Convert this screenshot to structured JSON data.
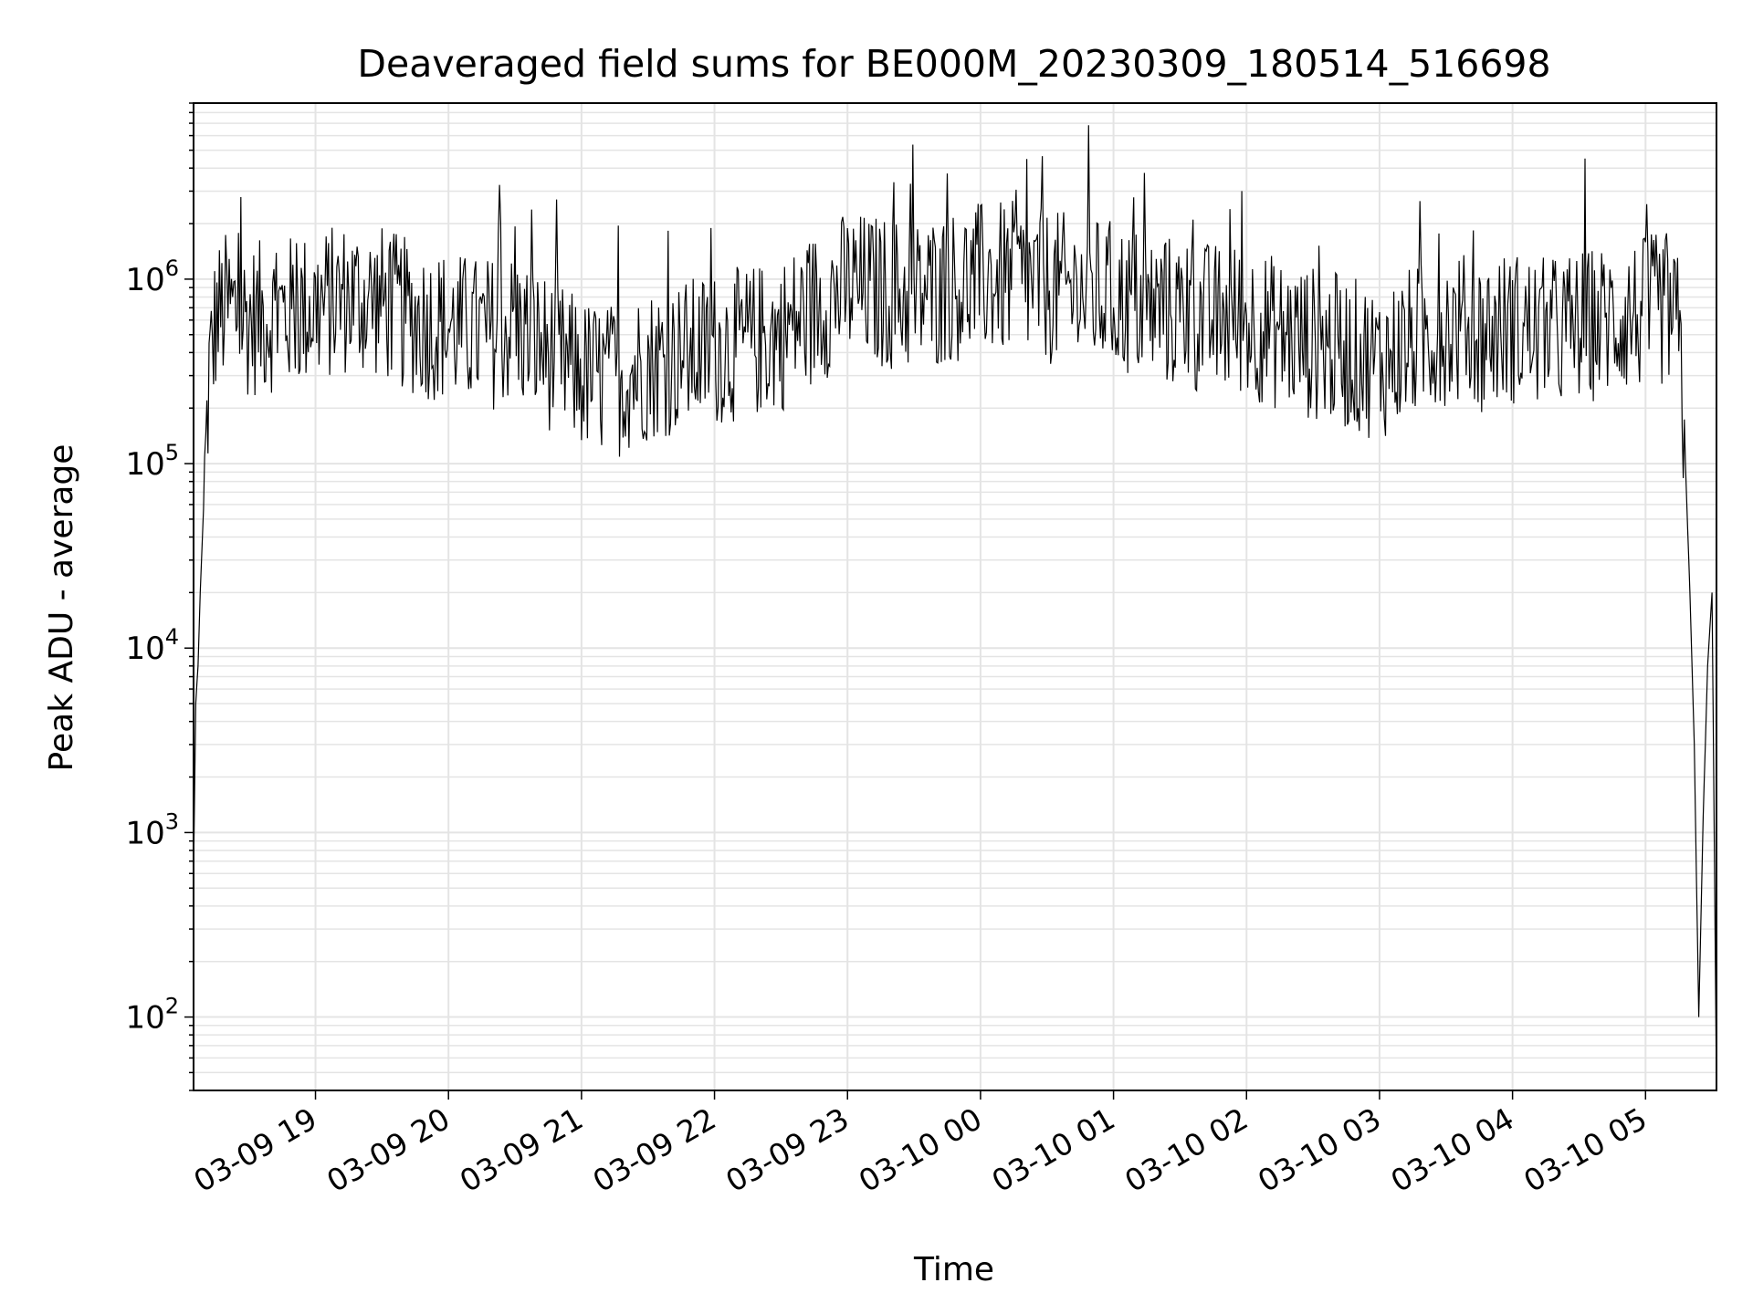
{
  "chart_data": {
    "type": "line",
    "title": "Deaveraged field sums for BE000M_20230309_180514_516698",
    "xlabel": "Time",
    "ylabel": "Peak ADU - average",
    "yscale": "log",
    "ylim": [
      40,
      9000000
    ],
    "xlim": [
      "03-09 18:05",
      "03-10 05:32"
    ],
    "grid": true,
    "x_ticks": [
      "03-09 19",
      "03-09 20",
      "03-09 21",
      "03-09 22",
      "03-09 23",
      "03-10 00",
      "03-10 01",
      "03-10 02",
      "03-10 03",
      "03-10 04",
      "03-10 05"
    ],
    "y_ticks": [
      {
        "value": 100,
        "base": "10",
        "exp": "2"
      },
      {
        "value": 1000,
        "base": "10",
        "exp": "3"
      },
      {
        "value": 10000,
        "base": "10",
        "exp": "4"
      },
      {
        "value": 100000,
        "base": "10",
        "exp": "5"
      },
      {
        "value": 1000000,
        "base": "10",
        "exp": "6"
      }
    ],
    "series": [
      {
        "color": "#000000",
        "x": [
          "03-09 18:05",
          "03-09 18:06",
          "03-09 18:07",
          "03-09 18:08",
          "03-09 18:10",
          "03-09 18:12",
          "03-09 18:15",
          "03-09 18:20",
          "03-09 18:30",
          "03-09 18:45",
          "03-09 19:00",
          "03-09 19:15",
          "03-09 19:30",
          "03-09 19:45",
          "03-09 20:00",
          "03-09 20:15",
          "03-09 20:30",
          "03-09 20:45",
          "03-09 21:00",
          "03-09 21:15",
          "03-09 21:30",
          "03-09 21:45",
          "03-09 22:00",
          "03-09 22:15",
          "03-09 22:30",
          "03-09 22:45",
          "03-09 23:00",
          "03-09 23:15",
          "03-09 23:30",
          "03-09 23:45",
          "03-10 00:00",
          "03-10 00:15",
          "03-10 00:30",
          "03-10 00:45",
          "03-10 01:00",
          "03-10 01:15",
          "03-10 01:30",
          "03-10 01:45",
          "03-10 02:00",
          "03-10 02:15",
          "03-10 02:30",
          "03-10 02:45",
          "03-10 03:00",
          "03-10 03:15",
          "03-10 03:30",
          "03-10 03:45",
          "03-10 04:00",
          "03-10 04:15",
          "03-10 04:30",
          "03-10 04:45",
          "03-10 05:00",
          "03-10 05:10",
          "03-10 05:15",
          "03-10 05:18",
          "03-10 05:20",
          "03-10 05:22",
          "03-10 05:24",
          "03-10 05:26",
          "03-10 05:28",
          "03-10 05:30",
          "03-10 05:32"
        ],
        "y": [
          600,
          5000,
          8000,
          20000,
          80000,
          300000,
          600000,
          700000,
          600000,
          650000,
          700000,
          800000,
          750000,
          600000,
          550000,
          500000,
          550000,
          400000,
          300000,
          280000,
          350000,
          380000,
          420000,
          450000,
          500000,
          700000,
          900000,
          850000,
          800000,
          900000,
          1000000,
          1000000,
          900000,
          850000,
          800000,
          700000,
          650000,
          600000,
          600000,
          500000,
          450000,
          400000,
          350000,
          450000,
          550000,
          500000,
          550000,
          500000,
          550000,
          600000,
          650000,
          700000,
          500000,
          100000,
          20000,
          3000,
          100,
          1200,
          8000,
          20000,
          40
        ]
      }
    ]
  }
}
